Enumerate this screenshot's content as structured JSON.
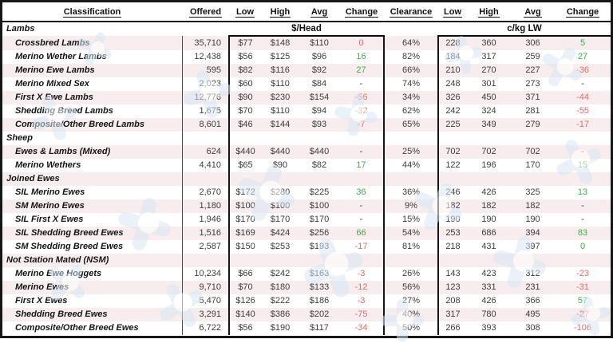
{
  "colors": {
    "positive_change": "#3cb043",
    "negative_change": "#dd6b6b",
    "row_stripe": "#f7edee",
    "watermark_blue": "#d9e6f3",
    "border": "#161616"
  },
  "watermark_icon": "bird-logo-watermark",
  "chart_data": {
    "type": "table",
    "columns": [
      "Classification",
      "Offered",
      "Low",
      "High",
      "Avg",
      "Change",
      "Clearance",
      "Low",
      "High",
      "Avg",
      "Change"
    ],
    "unit_groups": {
      "per_head": "$/Head",
      "per_kg": "c/kg LW"
    },
    "sections": [
      {
        "title": "Lambs",
        "rows": [
          {
            "name": "Crossbred Lambs",
            "offered": "35,710",
            "head_low": "$77",
            "head_high": "$148",
            "head_avg": "$110",
            "head_change": "0",
            "head_change_sign": "neg",
            "clearance": "64%",
            "kg_low": "228",
            "kg_high": "360",
            "kg_avg": "306",
            "kg_change": "5",
            "kg_change_sign": "pos"
          },
          {
            "name": "Merino Wether Lambs",
            "offered": "12,438",
            "head_low": "$56",
            "head_high": "$125",
            "head_avg": "$96",
            "head_change": "16",
            "head_change_sign": "pos",
            "clearance": "82%",
            "kg_low": "184",
            "kg_high": "317",
            "kg_avg": "259",
            "kg_change": "27",
            "kg_change_sign": "pos"
          },
          {
            "name": "Merino Ewe Lambs",
            "offered": "595",
            "head_low": "$82",
            "head_high": "$116",
            "head_avg": "$92",
            "head_change": "27",
            "head_change_sign": "pos",
            "clearance": "66%",
            "kg_low": "210",
            "kg_high": "270",
            "kg_avg": "227",
            "kg_change": "-36",
            "kg_change_sign": "neg"
          },
          {
            "name": "Merino Mixed Sex",
            "offered": "2,023",
            "head_low": "$60",
            "head_high": "$110",
            "head_avg": "$84",
            "head_change": "-",
            "head_change_sign": "",
            "clearance": "74%",
            "kg_low": "248",
            "kg_high": "301",
            "kg_avg": "273",
            "kg_change": "-",
            "kg_change_sign": ""
          },
          {
            "name": "First X Ewe Lambs",
            "offered": "12,776",
            "head_low": "$90",
            "head_high": "$230",
            "head_avg": "$154",
            "head_change": "-56",
            "head_change_sign": "neg",
            "clearance": "34%",
            "kg_low": "326",
            "kg_high": "450",
            "kg_avg": "371",
            "kg_change": "-44",
            "kg_change_sign": "neg"
          },
          {
            "name": "Shedding Breed Lambs",
            "offered": "1,675",
            "head_low": "$70",
            "head_high": "$110",
            "head_avg": "$94",
            "head_change": "-32",
            "head_change_sign": "neg",
            "clearance": "62%",
            "kg_low": "242",
            "kg_high": "324",
            "kg_avg": "281",
            "kg_change": "-55",
            "kg_change_sign": "neg"
          },
          {
            "name": "Composite/Other Breed Lambs",
            "offered": "8,601",
            "head_low": "$46",
            "head_high": "$144",
            "head_avg": "$93",
            "head_change": "-7",
            "head_change_sign": "neg",
            "clearance": "65%",
            "kg_low": "225",
            "kg_high": "349",
            "kg_avg": "279",
            "kg_change": "-17",
            "kg_change_sign": "neg"
          }
        ]
      },
      {
        "title": "Sheep",
        "rows": [
          {
            "name": "Ewes & Lambs (Mixed)",
            "offered": "624",
            "head_low": "$440",
            "head_high": "$440",
            "head_avg": "$440",
            "head_change": "-",
            "head_change_sign": "",
            "clearance": "25%",
            "kg_low": "702",
            "kg_high": "702",
            "kg_avg": "702",
            "kg_change": "-",
            "kg_change_sign": ""
          },
          {
            "name": "Merino Wethers",
            "offered": "4,410",
            "head_low": "$65",
            "head_high": "$90",
            "head_avg": "$82",
            "head_change": "17",
            "head_change_sign": "pos",
            "clearance": "44%",
            "kg_low": "122",
            "kg_high": "196",
            "kg_avg": "170",
            "kg_change": "15",
            "kg_change_sign": "pos"
          }
        ]
      },
      {
        "title": "Joined Ewes",
        "rows": [
          {
            "name": "SIL Merino Ewes",
            "offered": "2,670",
            "head_low": "$172",
            "head_high": "$280",
            "head_avg": "$225",
            "head_change": "36",
            "head_change_sign": "pos",
            "clearance": "36%",
            "kg_low": "246",
            "kg_high": "426",
            "kg_avg": "325",
            "kg_change": "13",
            "kg_change_sign": "pos"
          },
          {
            "name": "SM Merino Ewes",
            "offered": "1,180",
            "head_low": "$100",
            "head_high": "$100",
            "head_avg": "$100",
            "head_change": "-",
            "head_change_sign": "",
            "clearance": "9%",
            "kg_low": "182",
            "kg_high": "182",
            "kg_avg": "182",
            "kg_change": "-",
            "kg_change_sign": ""
          },
          {
            "name": "SIL First X Ewes",
            "offered": "1,946",
            "head_low": "$170",
            "head_high": "$170",
            "head_avg": "$170",
            "head_change": "-",
            "head_change_sign": "",
            "clearance": "15%",
            "kg_low": "190",
            "kg_high": "190",
            "kg_avg": "190",
            "kg_change": "-",
            "kg_change_sign": ""
          },
          {
            "name": "SIL Shedding Breed Ewes",
            "offered": "1,516",
            "head_low": "$169",
            "head_high": "$424",
            "head_avg": "$256",
            "head_change": "66",
            "head_change_sign": "pos",
            "clearance": "54%",
            "kg_low": "253",
            "kg_high": "686",
            "kg_avg": "394",
            "kg_change": "83",
            "kg_change_sign": "pos"
          },
          {
            "name": "SM Shedding Breed Ewes",
            "offered": "2,587",
            "head_low": "$150",
            "head_high": "$253",
            "head_avg": "$193",
            "head_change": "-17",
            "head_change_sign": "neg",
            "clearance": "81%",
            "kg_low": "218",
            "kg_high": "431",
            "kg_avg": "397",
            "kg_change": "0",
            "kg_change_sign": "pos"
          }
        ]
      },
      {
        "title": "Not Station Mated (NSM)",
        "rows": [
          {
            "name": "Merino Ewe Hoggets",
            "offered": "10,234",
            "head_low": "$66",
            "head_high": "$242",
            "head_avg": "$163",
            "head_change": "-3",
            "head_change_sign": "neg",
            "clearance": "26%",
            "kg_low": "143",
            "kg_high": "423",
            "kg_avg": "312",
            "kg_change": "-23",
            "kg_change_sign": "neg"
          },
          {
            "name": "Merino Ewes",
            "offered": "9,710",
            "head_low": "$70",
            "head_high": "$180",
            "head_avg": "$133",
            "head_change": "-12",
            "head_change_sign": "neg",
            "clearance": "56%",
            "kg_low": "123",
            "kg_high": "331",
            "kg_avg": "231",
            "kg_change": "-31",
            "kg_change_sign": "neg"
          },
          {
            "name": "First X Ewes",
            "offered": "5,470",
            "head_low": "$126",
            "head_high": "$222",
            "head_avg": "$186",
            "head_change": "-3",
            "head_change_sign": "neg",
            "clearance": "27%",
            "kg_low": "208",
            "kg_high": "426",
            "kg_avg": "366",
            "kg_change": "57",
            "kg_change_sign": "pos"
          },
          {
            "name": "Shedding Breed Ewes",
            "offered": "3,291",
            "head_low": "$140",
            "head_high": "$386",
            "head_avg": "$202",
            "head_change": "-75",
            "head_change_sign": "neg",
            "clearance": "40%",
            "kg_low": "317",
            "kg_high": "780",
            "kg_avg": "495",
            "kg_change": "-27",
            "kg_change_sign": "neg"
          },
          {
            "name": "Composite/Other Breed Ewes",
            "offered": "6,722",
            "head_low": "$56",
            "head_high": "$190",
            "head_avg": "$117",
            "head_change": "-34",
            "head_change_sign": "neg",
            "clearance": "50%",
            "kg_low": "266",
            "kg_high": "393",
            "kg_avg": "308",
            "kg_change": "-106",
            "kg_change_sign": "neg"
          }
        ]
      }
    ]
  }
}
